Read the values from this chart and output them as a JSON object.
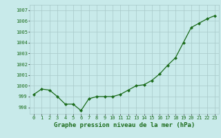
{
  "x": [
    0,
    1,
    2,
    3,
    4,
    5,
    6,
    7,
    8,
    9,
    10,
    11,
    12,
    13,
    14,
    15,
    16,
    17,
    18,
    19,
    20,
    21,
    22,
    23
  ],
  "y": [
    999.2,
    999.7,
    999.6,
    999.0,
    998.3,
    998.3,
    997.7,
    998.8,
    999.0,
    999.0,
    999.0,
    999.2,
    999.6,
    1000.0,
    1000.1,
    1000.5,
    1001.1,
    1001.9,
    1002.6,
    1004.0,
    1005.4,
    1005.8,
    1006.2,
    1006.5
  ],
  "line_color": "#1a6b1a",
  "marker_color": "#1a6b1a",
  "bg_color": "#c8eaea",
  "grid_color": "#a8c8c8",
  "text_color": "#1a6b1a",
  "xlabel": "Graphe pression niveau de la mer (hPa)",
  "ylim_min": 997.4,
  "ylim_max": 1007.5,
  "yticks": [
    998,
    999,
    1000,
    1001,
    1002,
    1003,
    1004,
    1005,
    1006,
    1007
  ],
  "tick_fontsize": 5.0,
  "xlabel_fontsize": 6.5
}
